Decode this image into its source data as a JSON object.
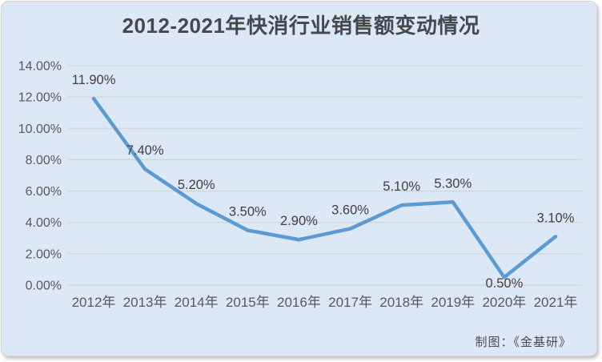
{
  "title": "2012-2021年快消行业销售额变动情况",
  "credit": "制图：《金基研》",
  "colors": {
    "panel_background": "#dce8f5",
    "line": "#5b9bd5",
    "gridline": "#d4d4d4",
    "axis_text": "#595959",
    "data_label_text": "#404040",
    "title_text": "#45484c"
  },
  "chart_data": {
    "type": "line",
    "title": "2012-2021年快消行业销售额变动情况",
    "categories": [
      "2012年",
      "2013年",
      "2014年",
      "2015年",
      "2016年",
      "2017年",
      "2018年",
      "2019年",
      "2020年",
      "2021年"
    ],
    "values": [
      11.9,
      7.4,
      5.2,
      3.5,
      2.9,
      3.6,
      5.1,
      5.3,
      0.5,
      3.1
    ],
    "data_labels": [
      "11.90%",
      "7.40%",
      "5.20%",
      "3.50%",
      "2.90%",
      "3.60%",
      "5.10%",
      "5.30%",
      "0.50%",
      "3.10%"
    ],
    "data_label_positions": [
      "above",
      "above",
      "above",
      "above",
      "above",
      "above",
      "above",
      "above",
      "below",
      "above"
    ],
    "y_ticks": [
      {
        "label": "0.00%",
        "value": 0
      },
      {
        "label": "2.00%",
        "value": 2
      },
      {
        "label": "4.00%",
        "value": 4
      },
      {
        "label": "6.00%",
        "value": 6
      },
      {
        "label": "8.00%",
        "value": 8
      },
      {
        "label": "10.00%",
        "value": 10
      },
      {
        "label": "12.00%",
        "value": 12
      },
      {
        "label": "14.00%",
        "value": 14
      }
    ],
    "ylim": [
      0,
      14
    ],
    "grid": true,
    "legend": "none"
  }
}
